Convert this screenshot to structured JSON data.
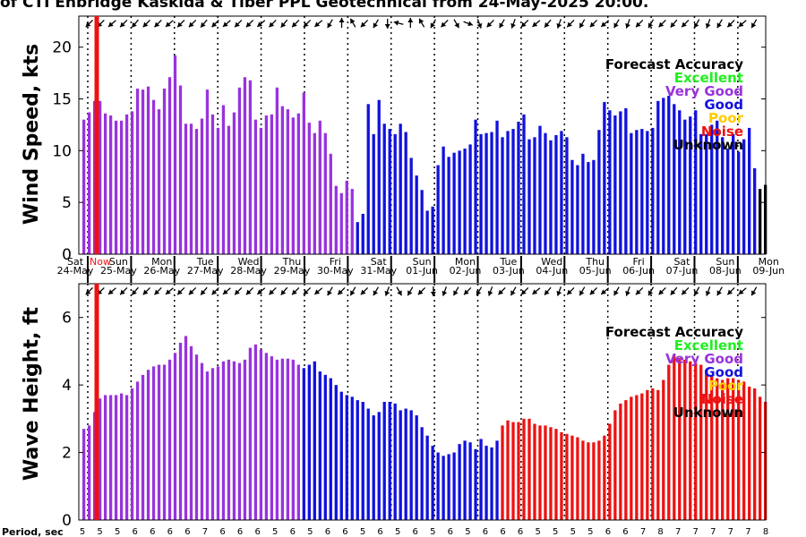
{
  "title": "of CTI Enbridge Kaskida & Tiber PPL Geotechnical from 24-May-2025 20:00.",
  "colors": {
    "excellent": "#22ee22",
    "very_good": "#9933dd",
    "good": "#1111dd",
    "poor": "#ffcc00",
    "noise": "#ee1111",
    "unknown": "#000000",
    "now_line": "#ee1111"
  },
  "legend": {
    "title": "Forecast Accuracy",
    "items": [
      {
        "label": "Excellent",
        "color": "#22ee22"
      },
      {
        "label": "Very Good",
        "color": "#9933dd"
      },
      {
        "label": "Good",
        "color": "#1111dd"
      },
      {
        "label": "Poor",
        "color": "#ffcc00"
      },
      {
        "label": "Noise",
        "color": "#ee1111"
      },
      {
        "label": "Unknown",
        "color": "#000000"
      }
    ]
  },
  "now_label": "Now",
  "period_label": "Period, sec",
  "chart_data": [
    {
      "type": "bar",
      "name": "wind",
      "ylabel": "Wind Speed, kts",
      "ylim": [
        0,
        23
      ],
      "yticks": [
        0,
        5,
        10,
        15,
        20
      ],
      "values": [
        13,
        13.7,
        14.8,
        14.8,
        13.6,
        13.4,
        12.9,
        12.9,
        13.5,
        13.8,
        16,
        15.9,
        16.2,
        14.9,
        14,
        16,
        17.1,
        19.2,
        16.3,
        12.6,
        12.6,
        12.1,
        13.1,
        15.9,
        13.5,
        12.2,
        14.4,
        12.4,
        13.7,
        16.1,
        17.1,
        16.8,
        13,
        12.2,
        13.4,
        13.5,
        16.1,
        14.3,
        14,
        13.2,
        13.6,
        15.6,
        12.7,
        11.7,
        12.9,
        11.7,
        9.7,
        6.6,
        5.9,
        7.1,
        6.3,
        3.1,
        3.9,
        14.5,
        11.6,
        14.9,
        12.6,
        12.1,
        11.6,
        12.6,
        11.8,
        9.3,
        7.6,
        6.2,
        4.2,
        4.6,
        8.6,
        10.4,
        9.4,
        9.8,
        10,
        10.2,
        10.6,
        13,
        11.6,
        11.7,
        11.8,
        12.9,
        11.3,
        11.9,
        12.1,
        12.8,
        13.5,
        11.1,
        11.3,
        12.4,
        11.7,
        11,
        11.5,
        11.9,
        11.3,
        9.1,
        8.6,
        9.7,
        8.9,
        9.1,
        12,
        14.7,
        13.9,
        13.4,
        13.8,
        14.1,
        11.7,
        12,
        12.1,
        11.9,
        12.2,
        14.8,
        15.1,
        15.3,
        14.5,
        13.9,
        13,
        13.3,
        13.9,
        11.6,
        11.6,
        12.5,
        12.9,
        11.3,
        10.2,
        11.6,
        9.9,
        11.1,
        12.2,
        8.3,
        6.3,
        6.7
      ],
      "accuracy": [
        "verygood",
        "verygood",
        "verygood",
        "verygood",
        "verygood",
        "verygood",
        "verygood",
        "verygood",
        "verygood",
        "verygood",
        "verygood",
        "verygood",
        "verygood",
        "verygood",
        "verygood",
        "verygood",
        "verygood",
        "verygood",
        "verygood",
        "verygood",
        "verygood",
        "verygood",
        "verygood",
        "verygood",
        "verygood",
        "verygood",
        "verygood",
        "verygood",
        "verygood",
        "verygood",
        "verygood",
        "verygood",
        "verygood",
        "verygood",
        "verygood",
        "verygood",
        "verygood",
        "verygood",
        "verygood",
        "verygood",
        "verygood",
        "verygood",
        "verygood",
        "verygood",
        "verygood",
        "verygood",
        "verygood",
        "verygood",
        "verygood",
        "verygood",
        "verygood",
        "good",
        "good",
        "good",
        "good",
        "good",
        "good",
        "good",
        "good",
        "good",
        "good",
        "good",
        "good",
        "good",
        "good",
        "good",
        "good",
        "good",
        "good",
        "good",
        "good",
        "good",
        "good",
        "good",
        "good",
        "good",
        "good",
        "good",
        "good",
        "good",
        "good",
        "good",
        "good",
        "good",
        "good",
        "good",
        "good",
        "good",
        "good",
        "good",
        "good",
        "good",
        "good",
        "good",
        "good",
        "good",
        "good",
        "good",
        "good",
        "good",
        "good",
        "good",
        "good",
        "good",
        "good",
        "good",
        "good",
        "good",
        "good",
        "good",
        "good",
        "good",
        "good",
        "good",
        "good",
        "good",
        "good",
        "good",
        "good",
        "good",
        "good",
        "good",
        "good",
        "good",
        "good",
        "good"
      ],
      "day_labels": [
        "Sat",
        "Sun",
        "Mon",
        "Tue",
        "Wed",
        "Thu",
        "Fri",
        "Sat",
        "Sun",
        "Mon",
        "Tue",
        "Wed",
        "Thu",
        "Fri",
        "Sat",
        "Sun",
        "Mon"
      ],
      "date_labels": [
        "24-May",
        "25-May",
        "26-May",
        "27-May",
        "28-May",
        "29-May",
        "30-May",
        "31-May",
        "01-Jun",
        "02-Jun",
        "03-Jun",
        "04-Jun",
        "05-Jun",
        "06-Jun",
        "07-Jun",
        "08-Jun",
        "09-Jun"
      ],
      "direction_deg": [
        315,
        315,
        320,
        315,
        310,
        315,
        315,
        320,
        315,
        315,
        310,
        315,
        320,
        315,
        315,
        320,
        315,
        310,
        315,
        315,
        320,
        300,
        90,
        60,
        315,
        300,
        270,
        15,
        90,
        60,
        300,
        315,
        240,
        200,
        250,
        315,
        300,
        290,
        315,
        320,
        310,
        290,
        315,
        300,
        315,
        320,
        300,
        290,
        315,
        300,
        315,
        310,
        315,
        300,
        290,
        300,
        315,
        320,
        300
      ]
    },
    {
      "type": "bar",
      "name": "wave",
      "ylabel": "Wave Height, ft",
      "ylim": [
        0,
        7
      ],
      "yticks": [
        0,
        2,
        4,
        6
      ],
      "values": [
        2.7,
        2.8,
        3.2,
        3.6,
        3.7,
        3.7,
        3.7,
        3.75,
        3.7,
        3.9,
        4.1,
        4.3,
        4.45,
        4.55,
        4.6,
        4.6,
        4.75,
        4.95,
        5.25,
        5.45,
        5.15,
        4.9,
        4.65,
        4.4,
        4.5,
        4.55,
        4.7,
        4.75,
        4.7,
        4.65,
        4.75,
        5.1,
        5.2,
        5.05,
        4.95,
        4.85,
        4.75,
        4.78,
        4.78,
        4.75,
        4.6,
        4.5,
        4.6,
        4.7,
        4.4,
        4.3,
        4.2,
        4.0,
        3.8,
        3.7,
        3.65,
        3.55,
        3.5,
        3.3,
        3.1,
        3.2,
        3.5,
        3.5,
        3.45,
        3.25,
        3.3,
        3.25,
        3.1,
        2.75,
        2.5,
        2.2,
        2.0,
        1.9,
        1.95,
        2.0,
        2.25,
        2.35,
        2.3,
        2.1,
        2.4,
        2.2,
        2.15,
        2.35,
        2.8,
        2.95,
        2.9,
        2.9,
        3.0,
        3.0,
        2.85,
        2.8,
        2.8,
        2.75,
        2.7,
        2.6,
        2.55,
        2.5,
        2.45,
        2.35,
        2.3,
        2.3,
        2.35,
        2.5,
        2.85,
        3.25,
        3.45,
        3.55,
        3.65,
        3.7,
        3.75,
        3.85,
        3.9,
        3.85,
        4.15,
        4.6,
        4.9,
        4.8,
        4.75,
        4.7,
        4.65,
        4.6,
        4.45,
        4.3,
        4.2,
        4.15,
        4.2,
        4.2,
        4.15,
        4.1,
        3.95,
        3.9,
        3.65,
        3.5
      ],
      "accuracy": [
        "verygood",
        "verygood",
        "verygood",
        "verygood",
        "verygood",
        "verygood",
        "verygood",
        "verygood",
        "verygood",
        "verygood",
        "verygood",
        "verygood",
        "verygood",
        "verygood",
        "verygood",
        "verygood",
        "verygood",
        "verygood",
        "verygood",
        "verygood",
        "verygood",
        "verygood",
        "verygood",
        "verygood",
        "verygood",
        "verygood",
        "verygood",
        "verygood",
        "verygood",
        "verygood",
        "verygood",
        "verygood",
        "verygood",
        "verygood",
        "verygood",
        "verygood",
        "verygood",
        "verygood",
        "verygood",
        "verygood",
        "verygood",
        "good",
        "good",
        "good",
        "good",
        "good",
        "good",
        "good",
        "good",
        "good",
        "good",
        "good",
        "good",
        "good",
        "good",
        "good",
        "good",
        "good",
        "good",
        "good",
        "good",
        "good",
        "good",
        "good",
        "good",
        "good",
        "good",
        "good",
        "good",
        "good",
        "good",
        "good",
        "good",
        "good",
        "good",
        "good",
        "good",
        "good",
        "noise",
        "noise",
        "noise",
        "noise",
        "noise",
        "noise",
        "noise",
        "noise",
        "noise",
        "noise",
        "noise",
        "noise",
        "noise",
        "noise",
        "noise",
        "noise",
        "noise",
        "noise",
        "noise",
        "noise",
        "noise",
        "noise",
        "noise",
        "noise",
        "noise",
        "noise",
        "noise",
        "noise",
        "noise",
        "noise",
        "noise",
        "noise",
        "noise",
        "noise",
        "noise",
        "noise",
        "noise",
        "noise",
        "noise",
        "noise",
        "noise",
        "noise",
        "noise",
        "noise",
        "noise",
        "noise",
        "noise",
        "noise",
        "noise",
        "noise"
      ],
      "direction_deg": [
        315,
        315,
        320,
        315,
        310,
        315,
        315,
        320,
        315,
        315,
        310,
        315,
        320,
        315,
        315,
        320,
        315,
        310,
        315,
        315,
        320,
        300,
        315,
        300,
        315,
        300,
        290,
        240,
        300,
        315,
        270,
        290,
        300,
        315,
        300,
        290,
        315,
        300,
        315,
        320,
        310,
        290,
        315,
        300,
        315,
        320,
        300,
        290,
        315,
        300,
        315,
        310,
        315,
        300,
        290,
        300,
        315,
        320,
        300
      ]
    }
  ],
  "period_values": [
    "5",
    "5",
    "5",
    "6",
    "6",
    "6",
    "6",
    "7",
    "6",
    "6",
    "6",
    "5",
    "6",
    "5",
    "6",
    "6",
    "5",
    "6",
    "5",
    "6",
    "5",
    "6",
    "5",
    "6",
    "6",
    "6",
    "5",
    "5",
    "5",
    "5",
    "6",
    "6",
    "7",
    "8",
    "7",
    "7",
    "7",
    "7",
    "7",
    "8"
  ]
}
